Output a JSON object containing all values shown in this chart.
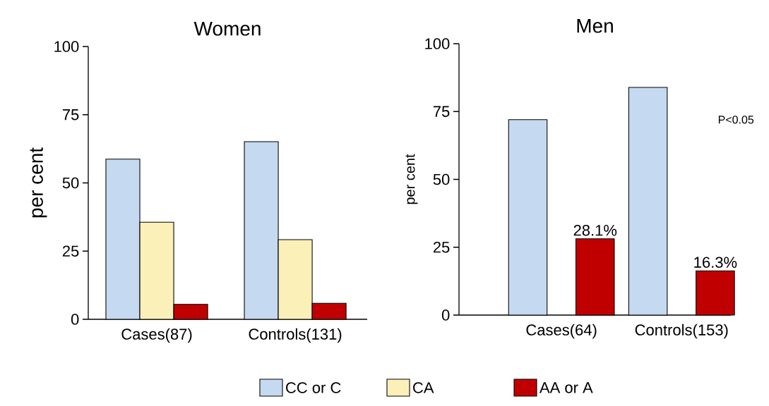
{
  "chart_data": [
    {
      "type": "bar",
      "title": "Women",
      "ylabel": "per cent",
      "categories": [
        "Cases(87)",
        "Controls(131)"
      ],
      "series": [
        {
          "name": "CC or C",
          "color": "#c5d9f1",
          "values": [
            58.7,
            65.1
          ]
        },
        {
          "name": "CA",
          "color": "#fbf0b8",
          "values": [
            35.6,
            29.2
          ]
        },
        {
          "name": "AA or A",
          "color": "#c00000",
          "values": [
            5.5,
            5.9
          ]
        }
      ],
      "ylim": [
        0,
        100
      ],
      "yticks": [
        0,
        25,
        50,
        75,
        100
      ],
      "legend": "bottom"
    },
    {
      "type": "bar",
      "title": "Men",
      "ylabel": "per cent",
      "categories": [
        "Cases(64)",
        "Controls(153)"
      ],
      "series": [
        {
          "color": "#c5d9f1",
          "values": [
            72,
            83.9
          ]
        },
        {
          "color": "#c00000",
          "values": [
            28.1,
            16.3
          ],
          "value_labels": [
            "28.1%",
            "16.3%"
          ]
        }
      ],
      "ylim": [
        0,
        100
      ],
      "yticks": [
        0,
        25,
        50,
        75,
        100
      ],
      "annotations": [
        "P<0.05"
      ]
    }
  ]
}
